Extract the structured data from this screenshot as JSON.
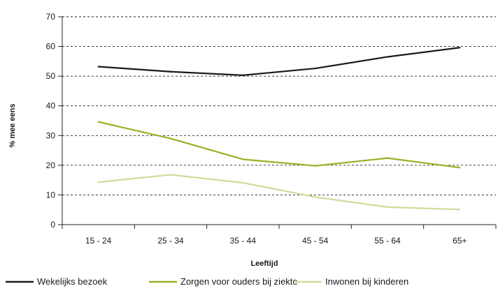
{
  "chart_data": {
    "type": "line",
    "title": "",
    "xlabel": "Leeftijd",
    "ylabel": "% mee eens",
    "categories": [
      "15 - 24",
      "25 - 34",
      "35 - 44",
      "45 - 54",
      "55 - 64",
      "65+"
    ],
    "ylim": [
      0,
      70
    ],
    "yticks": [
      0,
      10,
      20,
      30,
      40,
      50,
      60,
      70
    ],
    "grid": "horizontal dashed",
    "legend": "bottom",
    "series": [
      {
        "name": "Wekelijks bezoek",
        "color": "#1a1a1a",
        "values": [
          53.2,
          51.5,
          50.3,
          52.6,
          56.5,
          59.6
        ]
      },
      {
        "name": "Zorgen voor ouders bij ziekte",
        "color": "#9bb025",
        "values": [
          34.6,
          29.0,
          22.0,
          19.8,
          22.4,
          19.2
        ]
      },
      {
        "name": "Inwonen bij kinderen",
        "color": "#cfdc9a",
        "values": [
          14.3,
          16.8,
          14.1,
          9.3,
          5.9,
          5.1
        ]
      }
    ]
  }
}
